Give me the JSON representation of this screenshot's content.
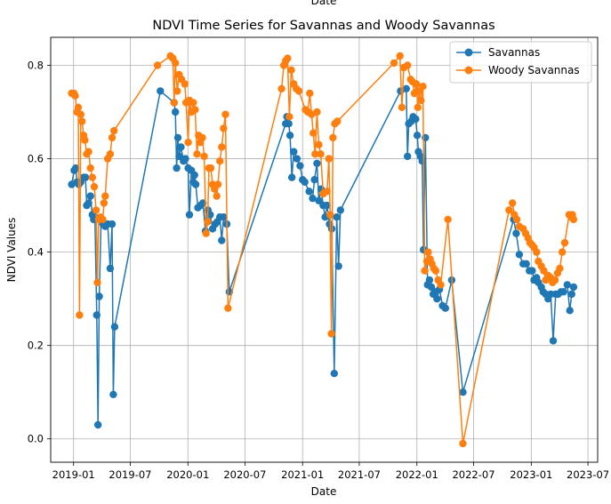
{
  "chart_data": {
    "type": "line",
    "title": "NDVI Time Series for Savannas and Woody Savannas",
    "top_label": "Date",
    "xlabel": "Date",
    "ylabel": "NDVI Values",
    "xlim": [
      "2018-10-20",
      "2023-08-01"
    ],
    "ylim": [
      -0.05,
      0.86
    ],
    "x_ticks": [
      "2019-01",
      "2019-07",
      "2020-01",
      "2020-07",
      "2021-01",
      "2021-07",
      "2022-01",
      "2022-07",
      "2023-01",
      "2023-07"
    ],
    "y_ticks": [
      0.0,
      0.2,
      0.4,
      0.6,
      0.8
    ],
    "y_tick_labels": [
      "0.0",
      "0.2",
      "0.4",
      "0.6",
      "0.8"
    ],
    "grid": true,
    "legend_position": "top-right",
    "colors": {
      "savannas": "#1f77b4",
      "woody": "#ff7f0e",
      "grid": "#b0b0b0"
    },
    "series": [
      {
        "name": "Savannas",
        "color": "#1f77b4",
        "points": [
          [
            "2018-12-26",
            0.545
          ],
          [
            "2019-01-03",
            0.575
          ],
          [
            "2019-01-08",
            0.58
          ],
          [
            "2019-01-12",
            0.55
          ],
          [
            "2019-01-18",
            0.545
          ],
          [
            "2019-01-24",
            0.55
          ],
          [
            "2019-02-02",
            0.56
          ],
          [
            "2019-02-08",
            0.56
          ],
          [
            "2019-02-12",
            0.5
          ],
          [
            "2019-02-18",
            0.505
          ],
          [
            "2019-02-24",
            0.52
          ],
          [
            "2019-03-02",
            0.48
          ],
          [
            "2019-03-06",
            0.47
          ],
          [
            "2019-03-10",
            0.475
          ],
          [
            "2019-03-16",
            0.265
          ],
          [
            "2019-03-20",
            0.03
          ],
          [
            "2019-03-24",
            0.305
          ],
          [
            "2019-03-30",
            0.47
          ],
          [
            "2019-04-05",
            0.46
          ],
          [
            "2019-04-12",
            0.455
          ],
          [
            "2019-04-20",
            0.46
          ],
          [
            "2019-04-28",
            0.365
          ],
          [
            "2019-05-04",
            0.46
          ],
          [
            "2019-05-08",
            0.095
          ],
          [
            "2019-05-12",
            0.24
          ],
          [
            "2019-10-05",
            0.745
          ],
          [
            "2019-11-18",
            0.72
          ],
          [
            "2019-11-22",
            0.7
          ],
          [
            "2019-11-26",
            0.58
          ],
          [
            "2019-11-30",
            0.645
          ],
          [
            "2019-12-04",
            0.605
          ],
          [
            "2019-12-10",
            0.625
          ],
          [
            "2019-12-18",
            0.595
          ],
          [
            "2019-12-24",
            0.6
          ],
          [
            "2020-01-02",
            0.58
          ],
          [
            "2020-01-06",
            0.48
          ],
          [
            "2020-01-12",
            0.575
          ],
          [
            "2020-01-18",
            0.55
          ],
          [
            "2020-01-22",
            0.565
          ],
          [
            "2020-01-26",
            0.545
          ],
          [
            "2020-02-02",
            0.495
          ],
          [
            "2020-02-10",
            0.5
          ],
          [
            "2020-02-18",
            0.505
          ],
          [
            "2020-02-26",
            0.445
          ],
          [
            "2020-03-05",
            0.49
          ],
          [
            "2020-03-12",
            0.48
          ],
          [
            "2020-03-20",
            0.45
          ],
          [
            "2020-03-28",
            0.46
          ],
          [
            "2020-04-04",
            0.465
          ],
          [
            "2020-04-12",
            0.475
          ],
          [
            "2020-04-18",
            0.425
          ],
          [
            "2020-04-24",
            0.475
          ],
          [
            "2020-05-04",
            0.46
          ],
          [
            "2020-05-12",
            0.315
          ],
          [
            "2020-11-08",
            0.675
          ],
          [
            "2020-11-12",
            0.69
          ],
          [
            "2020-11-18",
            0.675
          ],
          [
            "2020-11-22",
            0.65
          ],
          [
            "2020-11-28",
            0.56
          ],
          [
            "2020-12-04",
            0.615
          ],
          [
            "2020-12-14",
            0.6
          ],
          [
            "2020-12-24",
            0.585
          ],
          [
            "2021-01-01",
            0.555
          ],
          [
            "2021-01-08",
            0.55
          ],
          [
            "2021-01-22",
            0.53
          ],
          [
            "2021-02-02",
            0.515
          ],
          [
            "2021-02-08",
            0.555
          ],
          [
            "2021-02-16",
            0.59
          ],
          [
            "2021-02-22",
            0.51
          ],
          [
            "2021-03-01",
            0.535
          ],
          [
            "2021-03-08",
            0.5
          ],
          [
            "2021-03-14",
            0.475
          ],
          [
            "2021-03-20",
            0.5
          ],
          [
            "2021-03-28",
            0.46
          ],
          [
            "2021-04-04",
            0.45
          ],
          [
            "2021-04-12",
            0.14
          ],
          [
            "2021-04-20",
            0.475
          ],
          [
            "2021-04-26",
            0.37
          ],
          [
            "2021-05-02",
            0.49
          ],
          [
            "2021-11-10",
            0.745
          ],
          [
            "2021-11-28",
            0.75
          ],
          [
            "2021-12-02",
            0.605
          ],
          [
            "2021-12-06",
            0.675
          ],
          [
            "2021-12-14",
            0.68
          ],
          [
            "2021-12-20",
            0.69
          ],
          [
            "2021-12-28",
            0.685
          ],
          [
            "2022-01-02",
            0.65
          ],
          [
            "2022-01-06",
            0.615
          ],
          [
            "2022-01-12",
            0.605
          ],
          [
            "2022-01-18",
            0.595
          ],
          [
            "2022-01-22",
            0.405
          ],
          [
            "2022-01-28",
            0.645
          ],
          [
            "2022-02-04",
            0.33
          ],
          [
            "2022-02-10",
            0.34
          ],
          [
            "2022-02-16",
            0.325
          ],
          [
            "2022-02-22",
            0.31
          ],
          [
            "2022-02-28",
            0.315
          ],
          [
            "2022-03-06",
            0.3
          ],
          [
            "2022-03-14",
            0.32
          ],
          [
            "2022-03-24",
            0.285
          ],
          [
            "2022-04-02",
            0.28
          ],
          [
            "2022-04-22",
            0.34
          ],
          [
            "2022-05-28",
            0.1
          ],
          [
            "2022-11-06",
            0.47
          ],
          [
            "2022-11-14",
            0.44
          ],
          [
            "2022-11-24",
            0.395
          ],
          [
            "2022-12-06",
            0.375
          ],
          [
            "2022-12-16",
            0.375
          ],
          [
            "2022-12-26",
            0.36
          ],
          [
            "2023-01-04",
            0.36
          ],
          [
            "2023-01-10",
            0.34
          ],
          [
            "2023-01-18",
            0.345
          ],
          [
            "2023-01-24",
            0.335
          ],
          [
            "2023-02-02",
            0.325
          ],
          [
            "2023-02-08",
            0.315
          ],
          [
            "2023-02-16",
            0.31
          ],
          [
            "2023-02-24",
            0.3
          ],
          [
            "2023-03-04",
            0.31
          ],
          [
            "2023-03-12",
            0.21
          ],
          [
            "2023-03-20",
            0.31
          ],
          [
            "2023-03-28",
            0.31
          ],
          [
            "2023-04-06",
            0.315
          ],
          [
            "2023-04-14",
            0.315
          ],
          [
            "2023-04-26",
            0.33
          ],
          [
            "2023-05-04",
            0.275
          ],
          [
            "2023-05-10",
            0.31
          ],
          [
            "2023-05-16",
            0.325
          ]
        ]
      },
      {
        "name": "Woody Savannas",
        "color": "#ff7f0e",
        "points": [
          [
            "2018-12-26",
            0.74
          ],
          [
            "2019-01-02",
            0.74
          ],
          [
            "2019-01-06",
            0.735
          ],
          [
            "2019-01-12",
            0.7
          ],
          [
            "2019-01-16",
            0.71
          ],
          [
            "2019-01-20",
            0.265
          ],
          [
            "2019-01-24",
            0.695
          ],
          [
            "2019-01-28",
            0.68
          ],
          [
            "2019-02-02",
            0.65
          ],
          [
            "2019-02-06",
            0.64
          ],
          [
            "2019-02-12",
            0.61
          ],
          [
            "2019-02-18",
            0.615
          ],
          [
            "2019-02-24",
            0.58
          ],
          [
            "2019-03-02",
            0.56
          ],
          [
            "2019-03-08",
            0.54
          ],
          [
            "2019-03-14",
            0.49
          ],
          [
            "2019-03-18",
            0.335
          ],
          [
            "2019-03-22",
            0.47
          ],
          [
            "2019-03-28",
            0.475
          ],
          [
            "2019-04-04",
            0.47
          ],
          [
            "2019-04-08",
            0.505
          ],
          [
            "2019-04-12",
            0.52
          ],
          [
            "2019-04-20",
            0.6
          ],
          [
            "2019-04-28",
            0.61
          ],
          [
            "2019-05-04",
            0.645
          ],
          [
            "2019-05-10",
            0.66
          ],
          [
            "2019-09-26",
            0.8
          ],
          [
            "2019-11-06",
            0.82
          ],
          [
            "2019-11-14",
            0.815
          ],
          [
            "2019-11-18",
            0.72
          ],
          [
            "2019-11-22",
            0.805
          ],
          [
            "2019-11-28",
            0.745
          ],
          [
            "2019-12-04",
            0.78
          ],
          [
            "2019-12-12",
            0.77
          ],
          [
            "2019-12-22",
            0.76
          ],
          [
            "2019-12-26",
            0.72
          ],
          [
            "2020-01-02",
            0.635
          ],
          [
            "2020-01-06",
            0.725
          ],
          [
            "2020-01-12",
            0.7
          ],
          [
            "2020-01-18",
            0.72
          ],
          [
            "2020-01-24",
            0.705
          ],
          [
            "2020-01-30",
            0.61
          ],
          [
            "2020-02-04",
            0.65
          ],
          [
            "2020-02-10",
            0.635
          ],
          [
            "2020-02-16",
            0.645
          ],
          [
            "2020-02-22",
            0.605
          ],
          [
            "2020-02-28",
            0.44
          ],
          [
            "2020-03-04",
            0.465
          ],
          [
            "2020-03-08",
            0.58
          ],
          [
            "2020-03-14",
            0.58
          ],
          [
            "2020-03-20",
            0.545
          ],
          [
            "2020-03-26",
            0.535
          ],
          [
            "2020-04-02",
            0.52
          ],
          [
            "2020-04-06",
            0.545
          ],
          [
            "2020-04-12",
            0.595
          ],
          [
            "2020-04-18",
            0.625
          ],
          [
            "2020-04-24",
            0.665
          ],
          [
            "2020-04-30",
            0.695
          ],
          [
            "2020-05-08",
            0.28
          ],
          [
            "2020-10-26",
            0.75
          ],
          [
            "2020-11-02",
            0.8
          ],
          [
            "2020-11-08",
            0.81
          ],
          [
            "2020-11-14",
            0.815
          ],
          [
            "2020-11-20",
            0.69
          ],
          [
            "2020-11-26",
            0.79
          ],
          [
            "2020-12-04",
            0.76
          ],
          [
            "2020-12-12",
            0.75
          ],
          [
            "2020-12-20",
            0.745
          ],
          [
            "2021-01-10",
            0.705
          ],
          [
            "2021-01-18",
            0.7
          ],
          [
            "2021-01-24",
            0.74
          ],
          [
            "2021-01-30",
            0.695
          ],
          [
            "2021-02-04",
            0.655
          ],
          [
            "2021-02-10",
            0.61
          ],
          [
            "2021-02-16",
            0.7
          ],
          [
            "2021-02-22",
            0.63
          ],
          [
            "2021-02-28",
            0.61
          ],
          [
            "2021-03-08",
            0.525
          ],
          [
            "2021-03-20",
            0.53
          ],
          [
            "2021-03-26",
            0.6
          ],
          [
            "2021-03-30",
            0.48
          ],
          [
            "2021-04-03",
            0.225
          ],
          [
            "2021-04-08",
            0.645
          ],
          [
            "2021-04-14",
            0.675
          ],
          [
            "2021-04-22",
            0.68
          ],
          [
            "2021-10-20",
            0.805
          ],
          [
            "2021-11-08",
            0.82
          ],
          [
            "2021-11-14",
            0.71
          ],
          [
            "2021-11-20",
            0.795
          ],
          [
            "2021-12-02",
            0.8
          ],
          [
            "2021-12-12",
            0.77
          ],
          [
            "2021-12-18",
            0.765
          ],
          [
            "2021-12-24",
            0.74
          ],
          [
            "2021-12-30",
            0.76
          ],
          [
            "2022-01-04",
            0.71
          ],
          [
            "2022-01-08",
            0.745
          ],
          [
            "2022-01-14",
            0.725
          ],
          [
            "2022-01-20",
            0.755
          ],
          [
            "2022-01-26",
            0.36
          ],
          [
            "2022-02-02",
            0.38
          ],
          [
            "2022-02-06",
            0.4
          ],
          [
            "2022-02-12",
            0.385
          ],
          [
            "2022-02-18",
            0.375
          ],
          [
            "2022-02-24",
            0.365
          ],
          [
            "2022-03-02",
            0.36
          ],
          [
            "2022-03-10",
            0.34
          ],
          [
            "2022-03-18",
            0.33
          ],
          [
            "2022-04-10",
            0.47
          ],
          [
            "2022-05-28",
            -0.01
          ],
          [
            "2022-10-22",
            0.49
          ],
          [
            "2022-11-02",
            0.505
          ],
          [
            "2022-11-08",
            0.48
          ],
          [
            "2022-11-16",
            0.47
          ],
          [
            "2022-11-24",
            0.455
          ],
          [
            "2022-12-06",
            0.45
          ],
          [
            "2022-12-14",
            0.44
          ],
          [
            "2022-12-22",
            0.43
          ],
          [
            "2022-12-28",
            0.42
          ],
          [
            "2023-01-04",
            0.415
          ],
          [
            "2023-01-10",
            0.41
          ],
          [
            "2023-01-18",
            0.4
          ],
          [
            "2023-01-24",
            0.38
          ],
          [
            "2023-02-02",
            0.37
          ],
          [
            "2023-02-10",
            0.36
          ],
          [
            "2023-02-16",
            0.34
          ],
          [
            "2023-02-24",
            0.35
          ],
          [
            "2023-03-04",
            0.345
          ],
          [
            "2023-03-10",
            0.335
          ],
          [
            "2023-03-18",
            0.34
          ],
          [
            "2023-03-26",
            0.355
          ],
          [
            "2023-04-02",
            0.365
          ],
          [
            "2023-04-10",
            0.4
          ],
          [
            "2023-04-18",
            0.42
          ],
          [
            "2023-05-02",
            0.48
          ],
          [
            "2023-05-08",
            0.475
          ],
          [
            "2023-05-12",
            0.48
          ],
          [
            "2023-05-16",
            0.47
          ]
        ]
      }
    ]
  }
}
